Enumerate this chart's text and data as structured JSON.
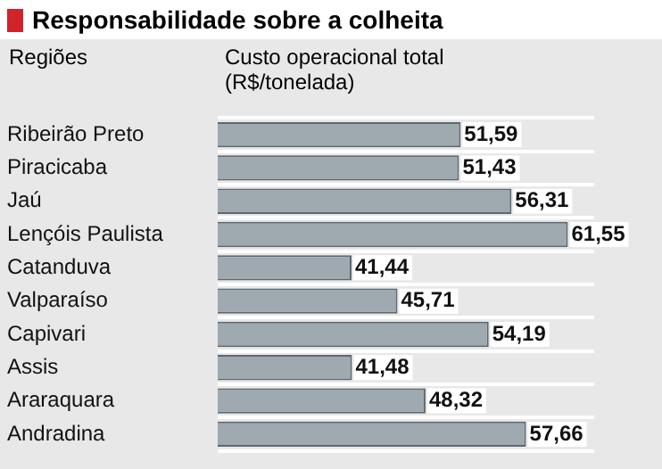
{
  "chart_data": {
    "type": "bar",
    "orientation": "horizontal",
    "title": "Responsabilidade sobre a colheita",
    "ylabel": "Regiões",
    "xlabel": "Custo operacional total (R$/tonelada)",
    "categories": [
      "Ribeirão Preto",
      "Piracicaba",
      "Jaú",
      "Lençóis Paulista",
      "Catanduva",
      "Valparaíso",
      "Capivari",
      "Assis",
      "Araraquara",
      "Andradina"
    ],
    "values": [
      51.59,
      51.43,
      56.31,
      61.55,
      41.44,
      45.71,
      54.19,
      41.48,
      48.32,
      57.66
    ],
    "value_labels": [
      "51,59",
      "51,43",
      "56,31",
      "61,55",
      "41,44",
      "45,71",
      "54,19",
      "41,48",
      "48,32",
      "57,66"
    ],
    "color": "#9ea9b0",
    "xlim": [
      29,
      64
    ],
    "tick_labels": "y",
    "grid": "y",
    "legend": false
  }
}
